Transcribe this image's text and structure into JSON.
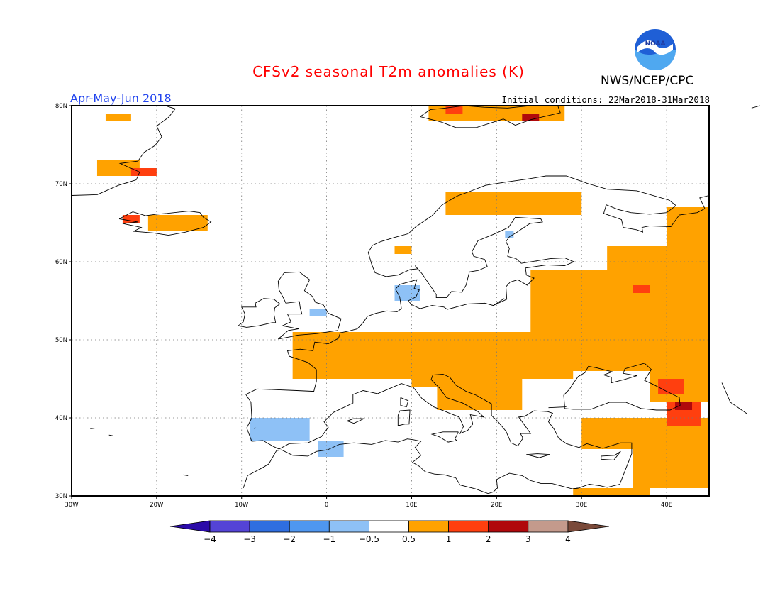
{
  "header": {
    "title": "CFSv2 seasonal T2m anomalies (K)",
    "agency": "NWS/NCEP/CPC",
    "season": "Apr-May-Jun 2018",
    "initial_conditions": "Initial conditions: 22Mar2018-31Mar2018",
    "logo_text": "NOAA"
  },
  "map": {
    "lon_range": [
      -30,
      45
    ],
    "lat_range": [
      30,
      80
    ],
    "x_ticks": [
      {
        "lon": -30,
        "label": "30W"
      },
      {
        "lon": -20,
        "label": "20W"
      },
      {
        "lon": -10,
        "label": "10W"
      },
      {
        "lon": 0,
        "label": "0"
      },
      {
        "lon": 10,
        "label": "10E"
      },
      {
        "lon": 20,
        "label": "20E"
      },
      {
        "lon": 30,
        "label": "30E"
      },
      {
        "lon": 40,
        "label": "40E"
      }
    ],
    "y_ticks": [
      {
        "lat": 30,
        "label": "30N"
      },
      {
        "lat": 40,
        "label": "40N"
      },
      {
        "lat": 50,
        "label": "50N"
      },
      {
        "lat": 60,
        "label": "60N"
      },
      {
        "lat": 70,
        "label": "70N"
      },
      {
        "lat": 80,
        "label": "80N"
      }
    ],
    "grid": "dotted",
    "anomaly_regions": [
      {
        "level": 1,
        "lon": [
          -4,
          29
        ],
        "lat": [
          45,
          51
        ]
      },
      {
        "level": 1,
        "lon": [
          10,
          23
        ],
        "lat": [
          44,
          47
        ]
      },
      {
        "level": 1,
        "lon": [
          24,
          45
        ],
        "lat": [
          46,
          59
        ]
      },
      {
        "level": 1,
        "lon": [
          33,
          45
        ],
        "lat": [
          59,
          62
        ]
      },
      {
        "level": 1,
        "lon": [
          40,
          45
        ],
        "lat": [
          62,
          67
        ]
      },
      {
        "level": 1,
        "lon": [
          14,
          30
        ],
        "lat": [
          66,
          69
        ]
      },
      {
        "level": 1,
        "lon": [
          38,
          45
        ],
        "lat": [
          42,
          47
        ]
      },
      {
        "level": 1,
        "lon": [
          13,
          23
        ],
        "lat": [
          41,
          44
        ]
      },
      {
        "level": 1,
        "lon": [
          30,
          45
        ],
        "lat": [
          36,
          40
        ]
      },
      {
        "level": 1,
        "lon": [
          36,
          45
        ],
        "lat": [
          31,
          37
        ]
      },
      {
        "level": 1,
        "lon": [
          29,
          38
        ],
        "lat": [
          30,
          31
        ]
      },
      {
        "level": 1,
        "lon": [
          -21,
          -14
        ],
        "lat": [
          64,
          66
        ]
      },
      {
        "level": 1,
        "lon": [
          -27,
          -22
        ],
        "lat": [
          71,
          73
        ]
      },
      {
        "level": 1,
        "lon": [
          -26,
          -23
        ],
        "lat": [
          78,
          79
        ]
      },
      {
        "level": 1,
        "lon": [
          12,
          28
        ],
        "lat": [
          78,
          80
        ]
      },
      {
        "level": 1,
        "lon": [
          8,
          10
        ],
        "lat": [
          61,
          62
        ]
      },
      {
        "level": 2,
        "lon": [
          39,
          42
        ],
        "lat": [
          43,
          45
        ]
      },
      {
        "level": 2,
        "lon": [
          40,
          44
        ],
        "lat": [
          39,
          42
        ]
      },
      {
        "level": 2,
        "lon": [
          -24,
          -22
        ],
        "lat": [
          65,
          66
        ]
      },
      {
        "level": 2,
        "lon": [
          -23,
          -20
        ],
        "lat": [
          71,
          72
        ]
      },
      {
        "level": 2,
        "lon": [
          36,
          38
        ],
        "lat": [
          56,
          57
        ]
      },
      {
        "level": 2,
        "lon": [
          14,
          16
        ],
        "lat": [
          79,
          80
        ]
      },
      {
        "level": 3,
        "lon": [
          23,
          25
        ],
        "lat": [
          78,
          79
        ]
      },
      {
        "level": 3,
        "lon": [
          41,
          43
        ],
        "lat": [
          41,
          42
        ]
      },
      {
        "level": -1,
        "lon": [
          -9,
          -2
        ],
        "lat": [
          37,
          40
        ]
      },
      {
        "level": -1,
        "lon": [
          -1,
          2
        ],
        "lat": [
          35,
          37
        ]
      },
      {
        "level": -1,
        "lon": [
          -2,
          0
        ],
        "lat": [
          53,
          54
        ]
      },
      {
        "level": -1,
        "lon": [
          8,
          11
        ],
        "lat": [
          55,
          57
        ]
      },
      {
        "level": -1,
        "lon": [
          21,
          22
        ],
        "lat": [
          63,
          64
        ]
      }
    ]
  },
  "colorbar": {
    "labels": [
      "−4",
      "−3",
      "−2",
      "−1",
      "−0.5",
      "0.5",
      "1",
      "2",
      "3",
      "4"
    ],
    "colors": {
      "lt_m4": "#2b0ba8",
      "m4_m3": "#5444d6",
      "m3_m2": "#2f6ee0",
      "m2_m1": "#4f97f0",
      "m1_m05": "#8ec1f6",
      "neutral": "#ffffff",
      "p05_p1": "#ffa200",
      "p1_p2": "#ff3f0f",
      "p2_p3": "#b0080c",
      "p3_p4": "#c49a8c",
      "gt_p4": "#7a4a3a"
    }
  }
}
